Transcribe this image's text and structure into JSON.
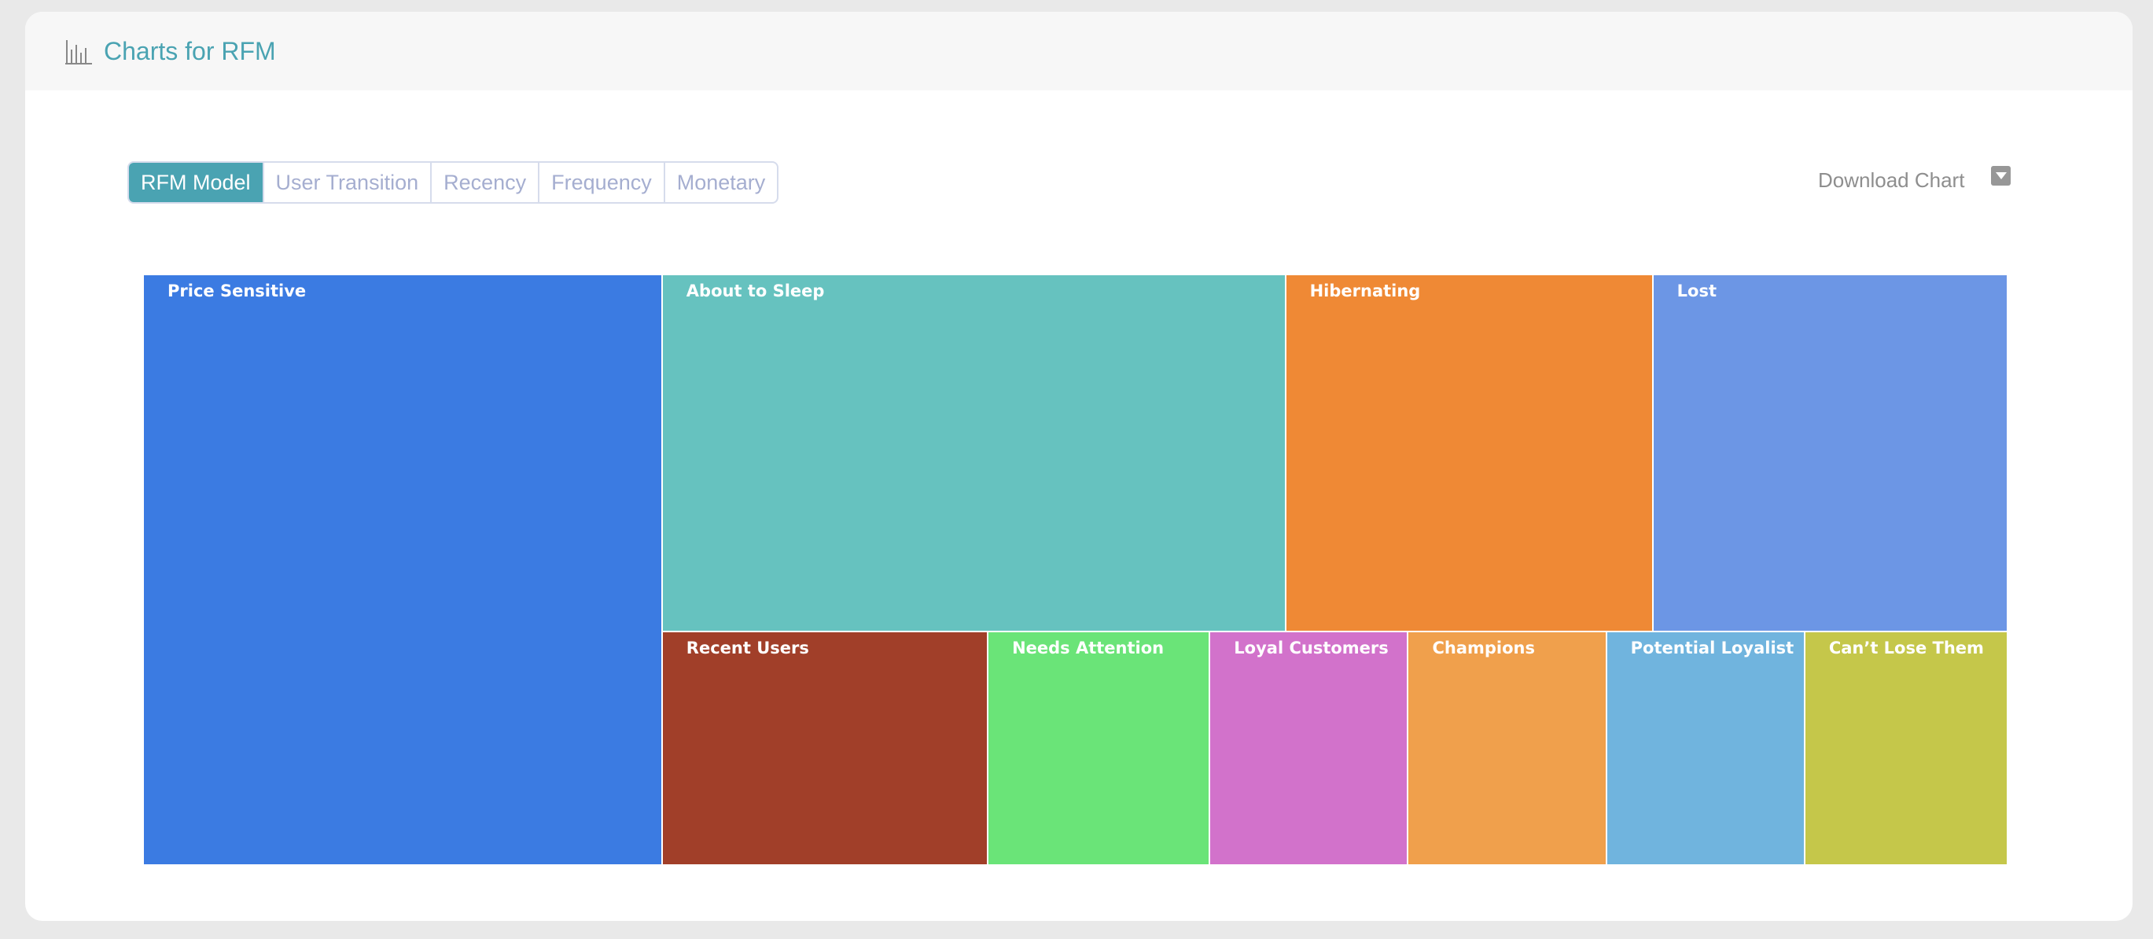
{
  "header": {
    "title": "Charts for RFM",
    "icon": "bar-chart-icon"
  },
  "tabs": [
    {
      "label": "RFM Model",
      "active": true
    },
    {
      "label": "User Transition",
      "active": false
    },
    {
      "label": "Recency",
      "active": false
    },
    {
      "label": "Frequency",
      "active": false
    },
    {
      "label": "Monetary",
      "active": false
    }
  ],
  "download": {
    "label": "Download Chart",
    "icon": "dropdown-caret-icon"
  },
  "colors": {
    "accent": "#4aa3b2"
  },
  "chart_data": {
    "type": "treemap",
    "value_unit": "approximate percent share estimated from area",
    "segments": [
      {
        "name": "Price Sensitive",
        "value": 27.8,
        "color": "#3b7be2"
      },
      {
        "name": "About to Sleep",
        "value": 20.2,
        "color": "#66c2bf"
      },
      {
        "name": "Hibernating",
        "value": 11.9,
        "color": "#ef8935"
      },
      {
        "name": "Lost",
        "value": 11.5,
        "color": "#6c96e5"
      },
      {
        "name": "Recent Users",
        "value": 6.9,
        "color": "#a13f29"
      },
      {
        "name": "Needs Attention",
        "value": 4.7,
        "color": "#6ae478"
      },
      {
        "name": "Loyal Customers",
        "value": 4.2,
        "color": "#d272cb"
      },
      {
        "name": "Champions",
        "value": 4.2,
        "color": "#f0a04c"
      },
      {
        "name": "Potential Loyalist",
        "value": 4.2,
        "color": "#70b4de"
      },
      {
        "name": "Can’t Lose Them",
        "value": 4.3,
        "color": "#c5c74a"
      }
    ]
  }
}
